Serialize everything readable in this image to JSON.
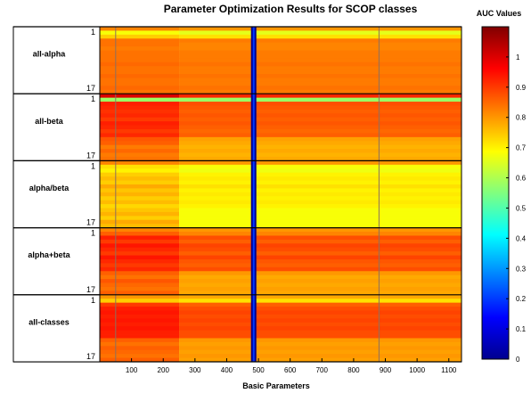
{
  "chart_data": {
    "type": "heatmap",
    "title": "Parameter Optimization Results  for SCOP classes",
    "xlabel": "Basic Parameters",
    "x_ticks": [
      100,
      200,
      300,
      400,
      500,
      600,
      700,
      800,
      900,
      1000,
      1100
    ],
    "xlim": [
      0,
      1140
    ],
    "colorbar": {
      "title": "AUC Values",
      "ticks": [
        "0",
        "0.1",
        "0.2",
        "0.3",
        "0.4",
        "0.5",
        "0.6",
        "0.7",
        "0.8",
        "0.9",
        "1"
      ],
      "range": [
        0,
        1.1
      ],
      "colormap": "jet"
    },
    "row_tick_labels": [
      "1",
      "17"
    ],
    "groups": [
      {
        "name": "all-alpha",
        "rows": 17,
        "row_values_left": [
          0.82,
          0.68,
          0.74,
          0.84,
          0.84,
          0.83,
          0.84,
          0.84,
          0.84,
          0.85,
          0.84,
          0.84,
          0.85,
          0.84,
          0.84,
          0.85,
          0.84
        ],
        "row_values_right": [
          0.8,
          0.66,
          0.72,
          0.83,
          0.82,
          0.82,
          0.83,
          0.83,
          0.83,
          0.84,
          0.83,
          0.83,
          0.84,
          0.83,
          0.83,
          0.84,
          0.83
        ]
      },
      {
        "name": "all-beta",
        "rows": 17,
        "row_values_left": [
          1.0,
          0.58,
          0.93,
          0.92,
          0.91,
          0.92,
          0.9,
          0.93,
          0.92,
          0.9,
          0.92,
          0.87,
          0.86,
          0.83,
          0.85,
          0.83,
          0.84
        ],
        "row_values_right": [
          0.92,
          0.58,
          0.88,
          0.87,
          0.86,
          0.87,
          0.86,
          0.87,
          0.86,
          0.85,
          0.86,
          0.79,
          0.78,
          0.77,
          0.78,
          0.77,
          0.78
        ]
      },
      {
        "name": "alpha/beta",
        "rows": 17,
        "row_values_left": [
          0.82,
          0.72,
          0.7,
          0.74,
          0.76,
          0.74,
          0.78,
          0.75,
          0.77,
          0.74,
          0.76,
          0.73,
          0.75,
          0.77,
          0.74,
          0.78,
          0.76
        ],
        "row_values_right": [
          0.8,
          0.68,
          0.67,
          0.7,
          0.71,
          0.7,
          0.72,
          0.7,
          0.71,
          0.7,
          0.71,
          0.7,
          0.68,
          0.68,
          0.68,
          0.68,
          0.68
        ]
      },
      {
        "name": "alpha+beta",
        "rows": 17,
        "row_values_left": [
          0.82,
          0.86,
          0.93,
          0.9,
          0.94,
          0.92,
          0.9,
          0.94,
          0.92,
          0.9,
          0.92,
          0.86,
          0.84,
          0.87,
          0.85,
          0.84,
          0.86
        ],
        "row_values_right": [
          0.8,
          0.82,
          0.88,
          0.86,
          0.89,
          0.88,
          0.86,
          0.89,
          0.87,
          0.86,
          0.88,
          0.8,
          0.78,
          0.79,
          0.78,
          0.79,
          0.78
        ]
      },
      {
        "name": "all-classes",
        "rows": 17,
        "row_values_left": [
          0.8,
          0.74,
          0.9,
          0.93,
          0.94,
          0.93,
          0.94,
          0.93,
          0.94,
          0.93,
          0.93,
          0.86,
          0.84,
          0.86,
          0.85,
          0.84,
          0.86
        ],
        "row_values_right": [
          0.78,
          0.72,
          0.86,
          0.88,
          0.89,
          0.88,
          0.89,
          0.88,
          0.89,
          0.88,
          0.88,
          0.8,
          0.79,
          0.8,
          0.79,
          0.8,
          0.79
        ]
      }
    ],
    "column_value_switch_at": 250,
    "low_column_at": 485,
    "low_column_value": 0.02,
    "thin_line_columns": [
      50,
      880
    ],
    "grid": false,
    "legend": "none"
  }
}
